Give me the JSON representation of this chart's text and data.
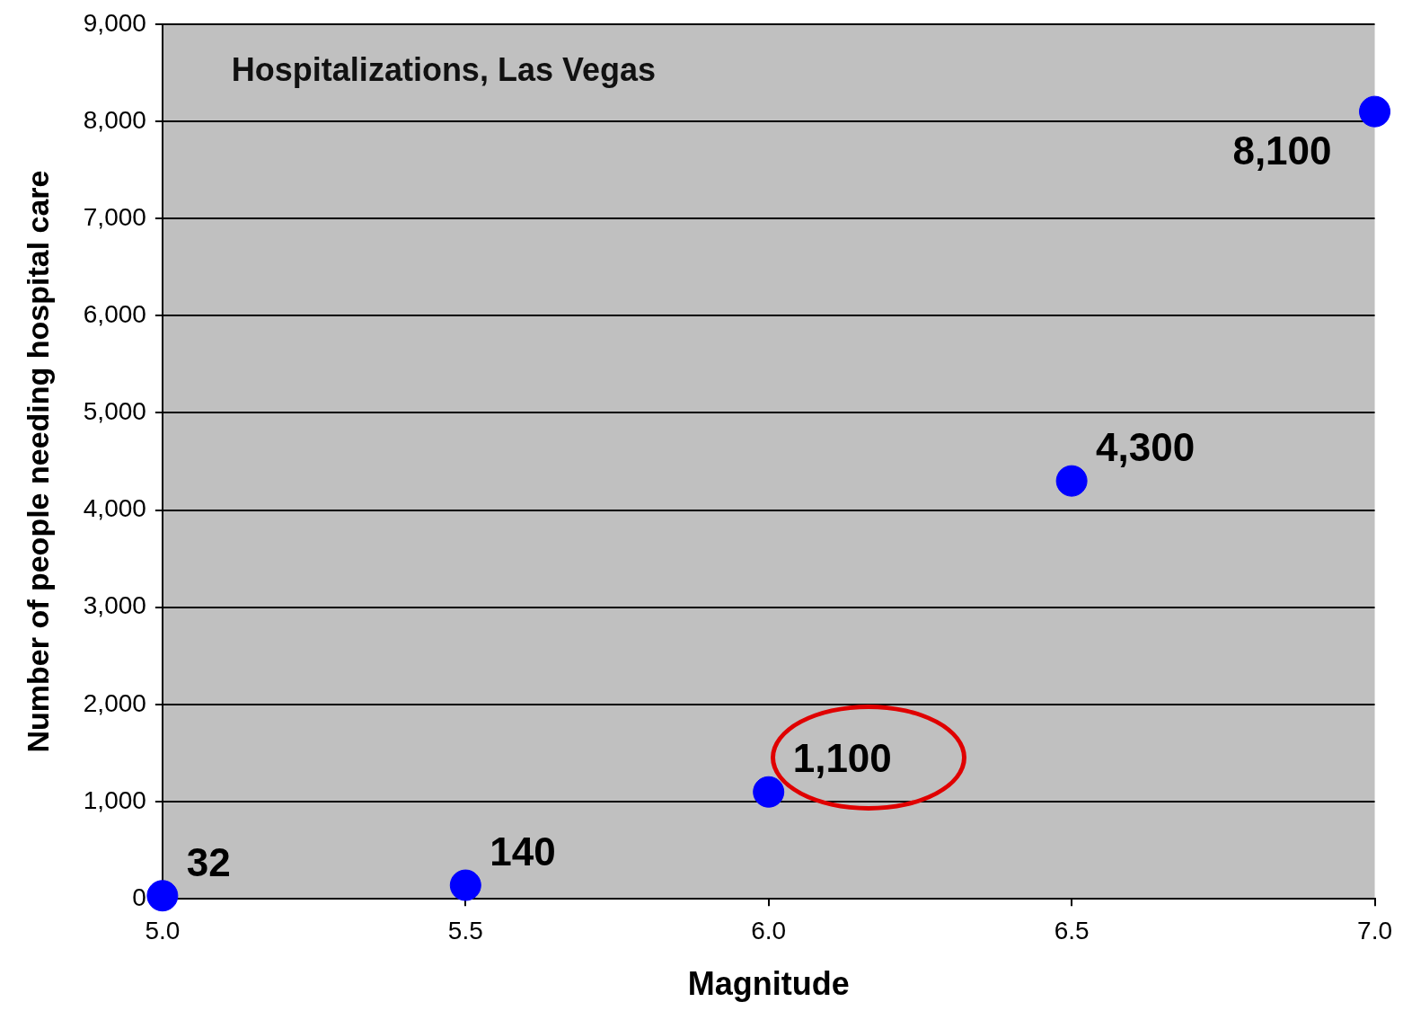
{
  "chart_data": {
    "type": "scatter",
    "title": "Hospitalizations, Las Vegas",
    "xlabel": "Magnitude",
    "ylabel": "Number of people needing hospital care",
    "x": [
      5.0,
      5.5,
      6.0,
      6.5,
      7.0
    ],
    "series": [
      {
        "color": "#0000ff",
        "values": [
          32,
          140,
          1100,
          4300,
          8100
        ],
        "value_labels": [
          "32",
          "140",
          "1,100",
          "4,300",
          "8,100"
        ]
      }
    ],
    "xlim": [
      5.0,
      7.0
    ],
    "xticks": [
      {
        "value": 5,
        "label": "5.0"
      },
      {
        "value": 5.5,
        "label": "5.5"
      },
      {
        "value": 6,
        "label": "6.0"
      },
      {
        "value": 6.5,
        "label": "6.5"
      },
      {
        "value": 7,
        "label": "7.0"
      }
    ],
    "ylim": [
      0,
      9000
    ],
    "yticks": [
      0,
      {
        "value": 1000,
        "label": "1,000"
      },
      {
        "value": 2000,
        "label": "2,000"
      },
      {
        "value": 3000,
        "label": "3,000"
      },
      {
        "value": 4000,
        "label": "4,000"
      },
      {
        "value": 5000,
        "label": "5,000"
      },
      {
        "value": 6000,
        "label": "6,000"
      },
      {
        "value": 7000,
        "label": "7,000"
      },
      {
        "value": 8000,
        "label": "8,000"
      },
      {
        "value": 9000,
        "label": "9,000"
      }
    ],
    "grid": "y",
    "marker": "circle",
    "legend": false
  }
}
